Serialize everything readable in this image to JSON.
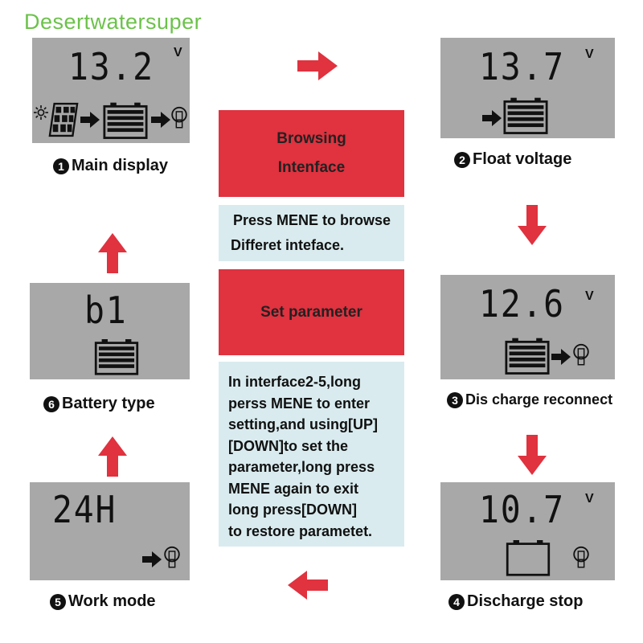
{
  "watermark": "Desertwatersuper",
  "colors": {
    "red": "#e0323f",
    "lightblue": "#d9ebee",
    "lcd": "#a8a8a8",
    "watermark": "#6cc24a",
    "arrow": "#e0323f"
  },
  "panels": {
    "main": {
      "value": "13.2",
      "unit": "V",
      "number": "1",
      "label": "Main display",
      "icons": [
        "sun-icon",
        "solar-panel-icon",
        "arrow-icon",
        "battery-icon",
        "arrow-icon",
        "bulb-icon"
      ]
    },
    "float": {
      "value": "13.7",
      "unit": "V",
      "number": "2",
      "label": "Float voltage",
      "icons": [
        "arrow-icon",
        "battery-icon"
      ]
    },
    "reconnect": {
      "value": "12.6",
      "unit": "V",
      "number": "3",
      "label": "Dis charge reconnect",
      "icons": [
        "battery-icon",
        "arrow-icon",
        "bulb-icon"
      ]
    },
    "stop": {
      "value": "10.7",
      "unit": "V",
      "number": "4",
      "label": "Discharge stop",
      "icons": [
        "empty-battery-icon",
        "bulb-icon"
      ]
    },
    "work": {
      "value": "24H",
      "number": "5",
      "label": "Work mode",
      "icons": [
        "arrow-icon",
        "bulb-icon"
      ]
    },
    "battery": {
      "value": "b1",
      "number": "6",
      "label": "Battery type",
      "icons": [
        "battery-icon"
      ]
    }
  },
  "center": {
    "browse_title": [
      "Browsing",
      "Intenface"
    ],
    "browse_text": [
      "Press MENE to browse",
      "Differet inteface."
    ],
    "set_title": "Set parameter",
    "set_text": [
      "In interface2-5,long",
      "perss MENE to enter",
      "setting,and using[UP]",
      "[DOWN]to set the",
      "parameter,long press",
      "MENE again to exit",
      "long press[DOWN]",
      "to restore parametet."
    ]
  }
}
